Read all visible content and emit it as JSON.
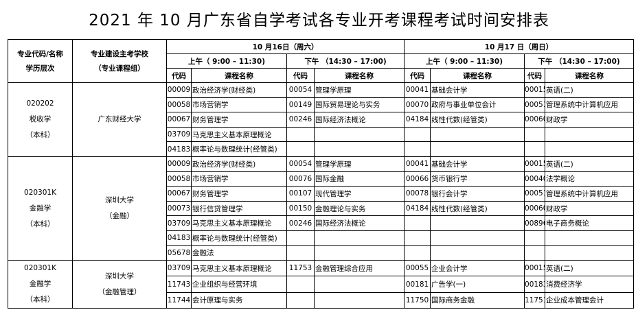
{
  "title": "2021 年 10 月广东省自学考试各专业开考课程考试时间安排表",
  "header": {
    "major_col": [
      "专业代码/名称",
      "学历层次"
    ],
    "school_col": [
      "专业建设主考学校",
      "（专业课程组）"
    ],
    "day1": "10 月16日（周六）",
    "day2": "10 月17 日（周日）",
    "am": "上午（ 9:00 – 11:30)",
    "pm": "下午 （14:30 – 17:00)",
    "code": "代码",
    "course": "课程名称"
  },
  "groups": [
    {
      "major": [
        "020202",
        "税收学",
        "（本科）"
      ],
      "school": [
        "广东财经大学"
      ],
      "rows": [
        [
          "00009",
          "政治经济学(财经类)",
          "00054",
          "管理学原理",
          "00041",
          "基础会计学",
          "00015",
          "英语(二)"
        ],
        [
          "00058",
          "市场营销学",
          "00149",
          "国际贸易理论与实务",
          "00070",
          "政府与事业单位会计",
          "00051",
          "管理系统中计算机应用"
        ],
        [
          "00067",
          "财务管理学",
          "00246",
          "国际经济法概论",
          "04184",
          "线性代数(经管类)",
          "00060",
          "财政学"
        ],
        [
          "03709",
          "马克思主义基本原理概论",
          "",
          "",
          "",
          "",
          "",
          ""
        ],
        [
          "04183",
          "概率论与数理统计(经管类)",
          "",
          "",
          "",
          "",
          "",
          ""
        ]
      ]
    },
    {
      "major": [
        "020301K",
        "金融学",
        "（本科）"
      ],
      "school": [
        "深圳大学",
        "（金融）"
      ],
      "rows": [
        [
          "00009",
          "政治经济学(财经类)",
          "00054",
          "管理学原理",
          "00041",
          "基础会计学",
          "00015",
          "英语(二)"
        ],
        [
          "00058",
          "市场营销学",
          "00076",
          "国际金融",
          "00066",
          "货币银行学",
          "00040",
          "法学概论"
        ],
        [
          "00067",
          "财务管理学",
          "00107",
          "现代管理学",
          "00078",
          "银行会计学",
          "00051",
          "管理系统中计算机应用"
        ],
        [
          "00073",
          "银行信贷管理学",
          "00150",
          "金融理论与实务",
          "04184",
          "线性代数(经管类)",
          "00060",
          "财政学"
        ],
        [
          "03709",
          "马克思主义基本原理概论",
          "00246",
          "国际经济法概论",
          "",
          "",
          "00896",
          "电子商务概论"
        ],
        [
          "04183",
          "概率论与数理统计(经管类)",
          "",
          "",
          "",
          "",
          "",
          ""
        ],
        [
          "05678",
          "金融法",
          "",
          "",
          "",
          "",
          "",
          ""
        ]
      ]
    },
    {
      "major": [
        "020301K",
        "金融学",
        "（本科）"
      ],
      "school": [
        "深圳大学",
        "（金融管理）"
      ],
      "rows": [
        [
          "03709",
          "马克思主义基本原理概论",
          "11753",
          "金融管理综合应用",
          "00055",
          "企业会计学",
          "00015",
          "英语(二)"
        ],
        [
          "11743",
          "企业组织与经营环境",
          "",
          "",
          "00181",
          "广告学(一)",
          "00183",
          "消费经济学"
        ],
        [
          "11744",
          "会计原理与实务",
          "",
          "",
          "11750",
          "国际商务金融",
          "11751",
          "企业成本管理会计"
        ]
      ]
    }
  ]
}
